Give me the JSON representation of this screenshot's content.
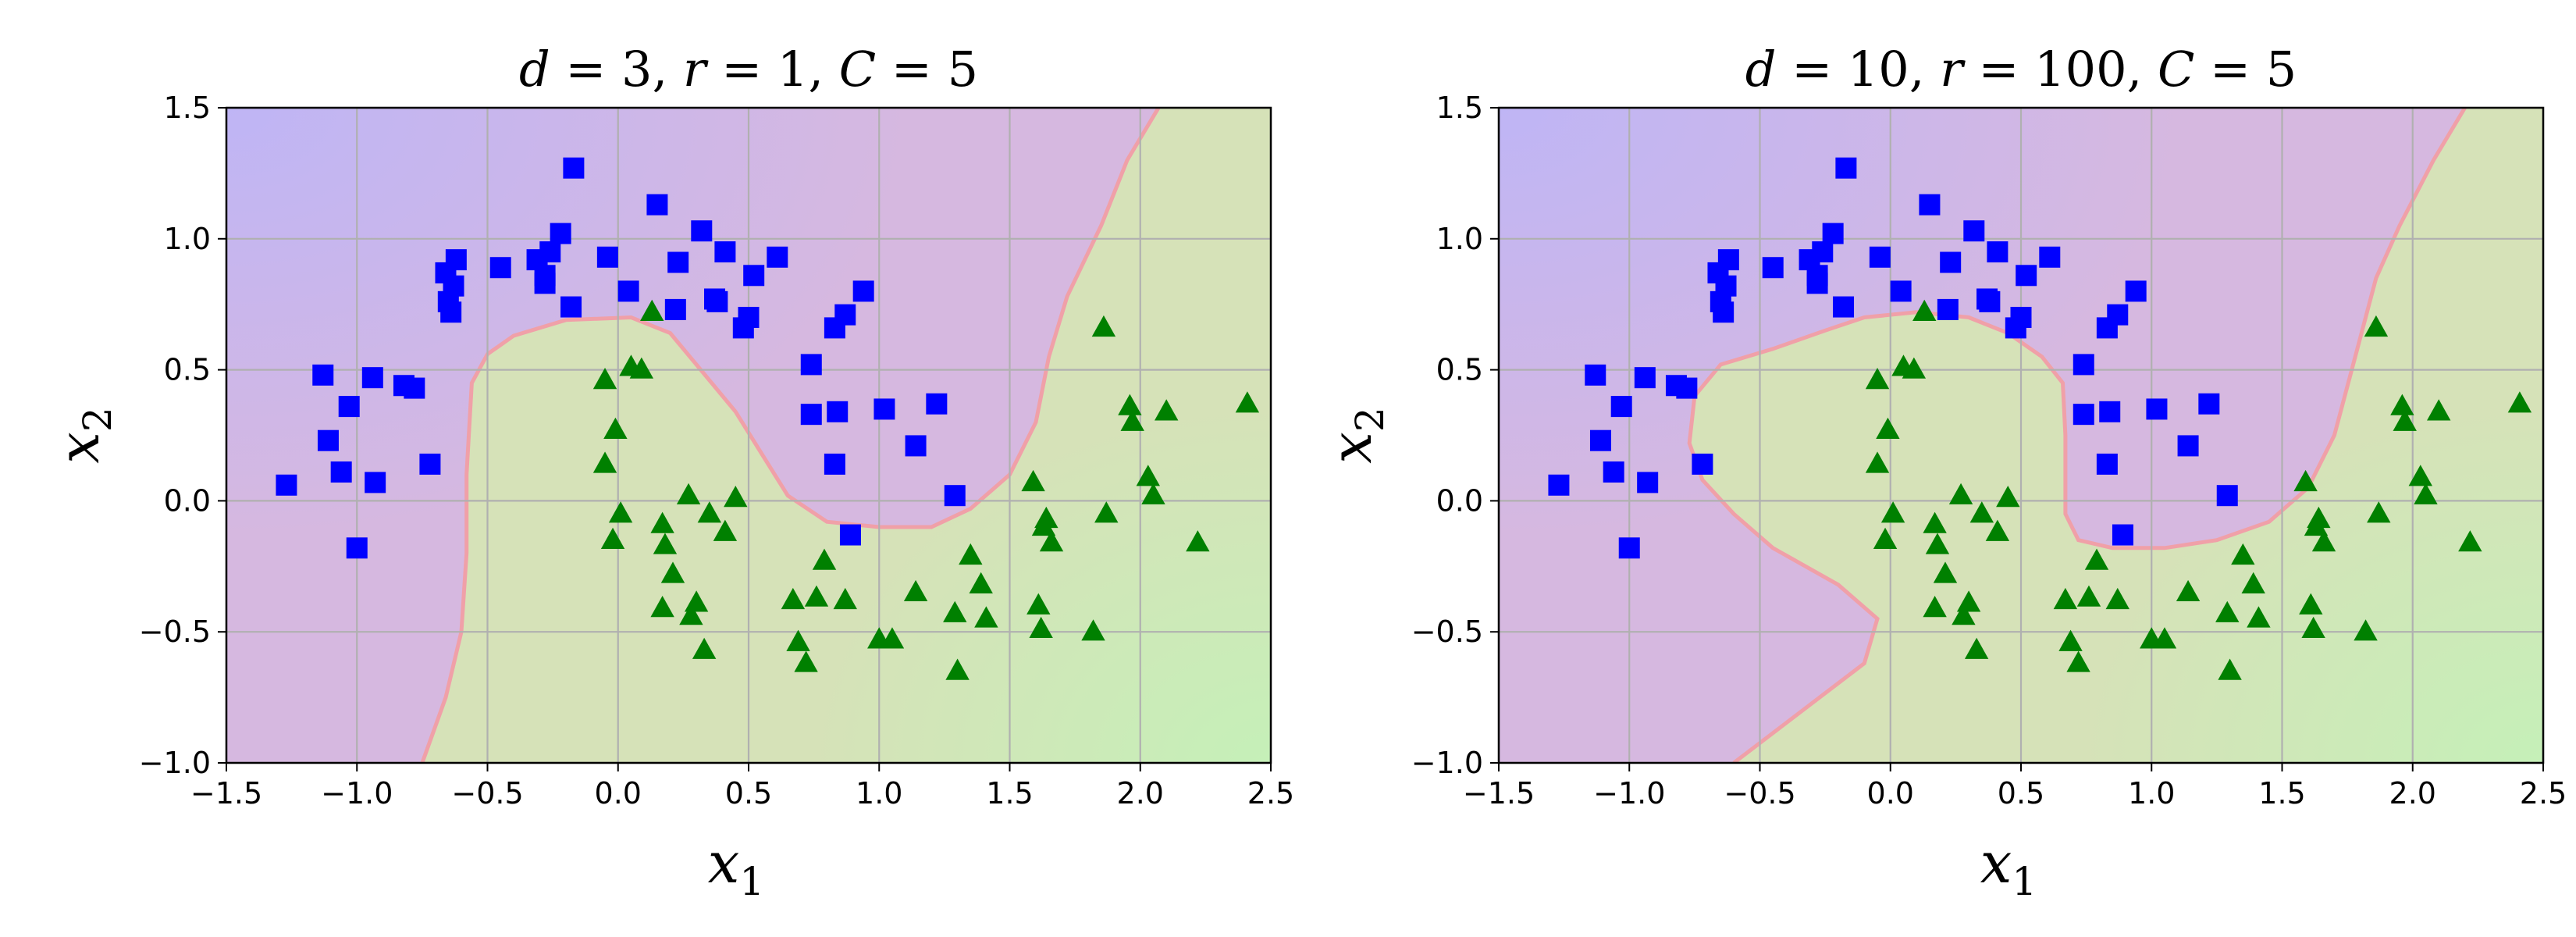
{
  "chart_data": [
    {
      "type": "scatter",
      "title_parts": [
        "d",
        " = 3, ",
        "r",
        " = 1, ",
        "C",
        " = 5"
      ],
      "xlabel": "x",
      "xlabel_sub": "1",
      "ylabel": "x",
      "ylabel_sub": "2",
      "xlim": [
        -1.5,
        2.5
      ],
      "ylim": [
        -1.0,
        1.5
      ],
      "xticks": [
        -1.5,
        -1.0,
        -0.5,
        0.0,
        0.5,
        1.0,
        1.5,
        2.0,
        2.5
      ],
      "xtick_labels": [
        "−1.5",
        "−1.0",
        "−0.5",
        "0.0",
        "0.5",
        "1.0",
        "1.5",
        "2.0",
        "2.5"
      ],
      "yticks": [
        -1.0,
        -0.5,
        0.0,
        0.5,
        1.0,
        1.5
      ],
      "ytick_labels": [
        "−1.0",
        "−0.5",
        "0.0",
        "0.5",
        "1.0",
        "1.5"
      ],
      "grid": true,
      "boundary": [
        [
          -0.75,
          -1.0
        ],
        [
          -0.66,
          -0.75
        ],
        [
          -0.6,
          -0.5
        ],
        [
          -0.58,
          -0.2
        ],
        [
          -0.58,
          0.1
        ],
        [
          -0.56,
          0.45
        ],
        [
          -0.5,
          0.56
        ],
        [
          -0.4,
          0.63
        ],
        [
          -0.2,
          0.69
        ],
        [
          0.05,
          0.7
        ],
        [
          0.2,
          0.64
        ],
        [
          0.3,
          0.52
        ],
        [
          0.45,
          0.34
        ],
        [
          0.55,
          0.18
        ],
        [
          0.65,
          0.02
        ],
        [
          0.8,
          -0.08
        ],
        [
          1.0,
          -0.1
        ],
        [
          1.2,
          -0.1
        ],
        [
          1.35,
          -0.03
        ],
        [
          1.5,
          0.1
        ],
        [
          1.6,
          0.3
        ],
        [
          1.65,
          0.55
        ],
        [
          1.72,
          0.78
        ],
        [
          1.85,
          1.05
        ],
        [
          1.95,
          1.3
        ],
        [
          2.07,
          1.5
        ]
      ],
      "series": [
        {
          "marker": "square",
          "color": "#0000ff",
          "points": [
            [
              -1.27,
              0.06
            ],
            [
              -1.13,
              0.48
            ],
            [
              -1.11,
              0.23
            ],
            [
              -1.06,
              0.11
            ],
            [
              -1.03,
              0.36
            ],
            [
              -1.0,
              -0.18
            ],
            [
              -0.94,
              0.47
            ],
            [
              -0.93,
              0.07
            ],
            [
              -0.82,
              0.44
            ],
            [
              -0.78,
              0.43
            ],
            [
              -0.72,
              0.14
            ],
            [
              -0.66,
              0.87
            ],
            [
              -0.65,
              0.76
            ],
            [
              -0.64,
              0.72
            ],
            [
              -0.63,
              0.82
            ],
            [
              -0.62,
              0.92
            ],
            [
              -0.45,
              0.89
            ],
            [
              -0.31,
              0.92
            ],
            [
              -0.28,
              0.86
            ],
            [
              -0.28,
              0.83
            ],
            [
              -0.26,
              0.95
            ],
            [
              -0.22,
              1.02
            ],
            [
              -0.18,
              0.74
            ],
            [
              -0.17,
              1.27
            ],
            [
              -0.04,
              0.93
            ],
            [
              0.04,
              0.8
            ],
            [
              0.15,
              1.13
            ],
            [
              0.22,
              0.73
            ],
            [
              0.23,
              0.91
            ],
            [
              0.32,
              1.03
            ],
            [
              0.37,
              0.77
            ],
            [
              0.38,
              0.76
            ],
            [
              0.41,
              0.95
            ],
            [
              0.48,
              0.66
            ],
            [
              0.5,
              0.7
            ],
            [
              0.52,
              0.86
            ],
            [
              0.61,
              0.93
            ],
            [
              0.74,
              0.52
            ],
            [
              0.74,
              0.33
            ],
            [
              0.83,
              0.14
            ],
            [
              0.83,
              0.66
            ],
            [
              0.84,
              0.34
            ],
            [
              0.87,
              0.71
            ],
            [
              0.89,
              -0.13
            ],
            [
              0.94,
              0.8
            ],
            [
              1.02,
              0.35
            ],
            [
              1.14,
              0.21
            ],
            [
              1.22,
              0.37
            ],
            [
              1.29,
              0.02
            ]
          ]
        },
        {
          "marker": "triangle",
          "color": "#008000",
          "points": [
            [
              -0.05,
              0.46
            ],
            [
              -0.05,
              0.14
            ],
            [
              -0.02,
              -0.15
            ],
            [
              -0.01,
              0.27
            ],
            [
              0.01,
              -0.05
            ],
            [
              0.05,
              0.51
            ],
            [
              0.09,
              0.5
            ],
            [
              0.13,
              0.72
            ],
            [
              0.17,
              -0.09
            ],
            [
              0.17,
              -0.41
            ],
            [
              0.18,
              -0.17
            ],
            [
              0.21,
              -0.28
            ],
            [
              0.27,
              0.02
            ],
            [
              0.28,
              -0.44
            ],
            [
              0.3,
              -0.39
            ],
            [
              0.33,
              -0.57
            ],
            [
              0.35,
              -0.05
            ],
            [
              0.41,
              -0.12
            ],
            [
              0.45,
              0.01
            ],
            [
              0.67,
              -0.38
            ],
            [
              0.69,
              -0.54
            ],
            [
              0.72,
              -0.62
            ],
            [
              0.76,
              -0.37
            ],
            [
              0.79,
              -0.23
            ],
            [
              0.87,
              -0.38
            ],
            [
              1.0,
              -0.53
            ],
            [
              1.05,
              -0.53
            ],
            [
              1.14,
              -0.35
            ],
            [
              1.29,
              -0.43
            ],
            [
              1.3,
              -0.65
            ],
            [
              1.35,
              -0.21
            ],
            [
              1.39,
              -0.32
            ],
            [
              1.41,
              -0.45
            ],
            [
              1.59,
              0.07
            ],
            [
              1.61,
              -0.4
            ],
            [
              1.62,
              -0.49
            ],
            [
              1.63,
              -0.1
            ],
            [
              1.64,
              -0.07
            ],
            [
              1.66,
              -0.16
            ],
            [
              1.82,
              -0.5
            ],
            [
              1.86,
              0.66
            ],
            [
              1.87,
              -0.05
            ],
            [
              1.96,
              0.36
            ],
            [
              1.97,
              0.3
            ],
            [
              2.03,
              0.09
            ],
            [
              2.05,
              0.02
            ],
            [
              2.1,
              0.34
            ],
            [
              2.22,
              -0.16
            ],
            [
              2.41,
              0.37
            ]
          ]
        }
      ]
    },
    {
      "type": "scatter",
      "title_parts": [
        "d",
        " = 10, ",
        "r",
        " = 100, ",
        "C",
        " = 5"
      ],
      "xlabel": "x",
      "xlabel_sub": "1",
      "ylabel": "x",
      "ylabel_sub": "2",
      "xlim": [
        -1.5,
        2.5
      ],
      "ylim": [
        -1.0,
        1.5
      ],
      "xticks": [
        -1.5,
        -1.0,
        -0.5,
        0.0,
        0.5,
        1.0,
        1.5,
        2.0,
        2.5
      ],
      "xtick_labels": [
        "−1.5",
        "−1.0",
        "−0.5",
        "0.0",
        "0.5",
        "1.0",
        "1.5",
        "2.0",
        "2.5"
      ],
      "yticks": [
        -1.0,
        -0.5,
        0.0,
        0.5,
        1.0,
        1.5
      ],
      "ytick_labels": [
        "−1.0",
        "−0.5",
        "0.0",
        "0.5",
        "1.0",
        "1.5"
      ],
      "grid": true,
      "boundary": [
        [
          -0.6,
          -1.0
        ],
        [
          -0.1,
          -0.62
        ],
        [
          -0.05,
          -0.45
        ],
        [
          -0.2,
          -0.32
        ],
        [
          -0.45,
          -0.18
        ],
        [
          -0.6,
          -0.05
        ],
        [
          -0.72,
          0.08
        ],
        [
          -0.77,
          0.22
        ],
        [
          -0.75,
          0.4
        ],
        [
          -0.65,
          0.52
        ],
        [
          -0.45,
          0.58
        ],
        [
          -0.25,
          0.65
        ],
        [
          -0.1,
          0.7
        ],
        [
          0.1,
          0.72
        ],
        [
          0.3,
          0.7
        ],
        [
          0.45,
          0.64
        ],
        [
          0.58,
          0.55
        ],
        [
          0.66,
          0.45
        ],
        [
          0.67,
          0.25
        ],
        [
          0.67,
          -0.05
        ],
        [
          0.72,
          -0.15
        ],
        [
          0.85,
          -0.18
        ],
        [
          1.05,
          -0.18
        ],
        [
          1.25,
          -0.15
        ],
        [
          1.45,
          -0.08
        ],
        [
          1.6,
          0.05
        ],
        [
          1.7,
          0.25
        ],
        [
          1.78,
          0.55
        ],
        [
          1.86,
          0.85
        ],
        [
          1.95,
          1.05
        ],
        [
          2.08,
          1.3
        ],
        [
          2.2,
          1.5
        ]
      ],
      "series": [
        {
          "marker": "square",
          "color": "#0000ff",
          "points": [
            [
              -1.27,
              0.06
            ],
            [
              -1.13,
              0.48
            ],
            [
              -1.11,
              0.23
            ],
            [
              -1.06,
              0.11
            ],
            [
              -1.03,
              0.36
            ],
            [
              -1.0,
              -0.18
            ],
            [
              -0.94,
              0.47
            ],
            [
              -0.93,
              0.07
            ],
            [
              -0.82,
              0.44
            ],
            [
              -0.78,
              0.43
            ],
            [
              -0.72,
              0.14
            ],
            [
              -0.66,
              0.87
            ],
            [
              -0.65,
              0.76
            ],
            [
              -0.64,
              0.72
            ],
            [
              -0.63,
              0.82
            ],
            [
              -0.62,
              0.92
            ],
            [
              -0.45,
              0.89
            ],
            [
              -0.31,
              0.92
            ],
            [
              -0.28,
              0.86
            ],
            [
              -0.28,
              0.83
            ],
            [
              -0.26,
              0.95
            ],
            [
              -0.22,
              1.02
            ],
            [
              -0.18,
              0.74
            ],
            [
              -0.17,
              1.27
            ],
            [
              -0.04,
              0.93
            ],
            [
              0.04,
              0.8
            ],
            [
              0.15,
              1.13
            ],
            [
              0.22,
              0.73
            ],
            [
              0.23,
              0.91
            ],
            [
              0.32,
              1.03
            ],
            [
              0.37,
              0.77
            ],
            [
              0.38,
              0.76
            ],
            [
              0.41,
              0.95
            ],
            [
              0.48,
              0.66
            ],
            [
              0.5,
              0.7
            ],
            [
              0.52,
              0.86
            ],
            [
              0.61,
              0.93
            ],
            [
              0.74,
              0.52
            ],
            [
              0.74,
              0.33
            ],
            [
              0.83,
              0.14
            ],
            [
              0.83,
              0.66
            ],
            [
              0.84,
              0.34
            ],
            [
              0.87,
              0.71
            ],
            [
              0.89,
              -0.13
            ],
            [
              0.94,
              0.8
            ],
            [
              1.02,
              0.35
            ],
            [
              1.14,
              0.21
            ],
            [
              1.22,
              0.37
            ],
            [
              1.29,
              0.02
            ]
          ]
        },
        {
          "marker": "triangle",
          "color": "#008000",
          "points": [
            [
              -0.05,
              0.46
            ],
            [
              -0.05,
              0.14
            ],
            [
              -0.02,
              -0.15
            ],
            [
              -0.01,
              0.27
            ],
            [
              0.01,
              -0.05
            ],
            [
              0.05,
              0.51
            ],
            [
              0.09,
              0.5
            ],
            [
              0.13,
              0.72
            ],
            [
              0.17,
              -0.09
            ],
            [
              0.17,
              -0.41
            ],
            [
              0.18,
              -0.17
            ],
            [
              0.21,
              -0.28
            ],
            [
              0.27,
              0.02
            ],
            [
              0.28,
              -0.44
            ],
            [
              0.3,
              -0.39
            ],
            [
              0.33,
              -0.57
            ],
            [
              0.35,
              -0.05
            ],
            [
              0.41,
              -0.12
            ],
            [
              0.45,
              0.01
            ],
            [
              0.67,
              -0.38
            ],
            [
              0.69,
              -0.54
            ],
            [
              0.72,
              -0.62
            ],
            [
              0.76,
              -0.37
            ],
            [
              0.79,
              -0.23
            ],
            [
              0.87,
              -0.38
            ],
            [
              1.0,
              -0.53
            ],
            [
              1.05,
              -0.53
            ],
            [
              1.14,
              -0.35
            ],
            [
              1.29,
              -0.43
            ],
            [
              1.3,
              -0.65
            ],
            [
              1.35,
              -0.21
            ],
            [
              1.39,
              -0.32
            ],
            [
              1.41,
              -0.45
            ],
            [
              1.59,
              0.07
            ],
            [
              1.61,
              -0.4
            ],
            [
              1.62,
              -0.49
            ],
            [
              1.63,
              -0.1
            ],
            [
              1.64,
              -0.07
            ],
            [
              1.66,
              -0.16
            ],
            [
              1.82,
              -0.5
            ],
            [
              1.86,
              0.66
            ],
            [
              1.87,
              -0.05
            ],
            [
              1.96,
              0.36
            ],
            [
              1.97,
              0.3
            ],
            [
              2.03,
              0.09
            ],
            [
              2.05,
              0.02
            ],
            [
              2.1,
              0.34
            ],
            [
              2.22,
              -0.16
            ],
            [
              2.41,
              0.37
            ]
          ]
        }
      ]
    }
  ],
  "colors": {
    "region_class0": "#d6b8e0",
    "region_class1": "#d6e2b8",
    "region_far0": "#bfb5f5",
    "region_far1": "#c5f0b8",
    "boundary": "#f0a0a8",
    "grid": "#b0b0b0"
  }
}
